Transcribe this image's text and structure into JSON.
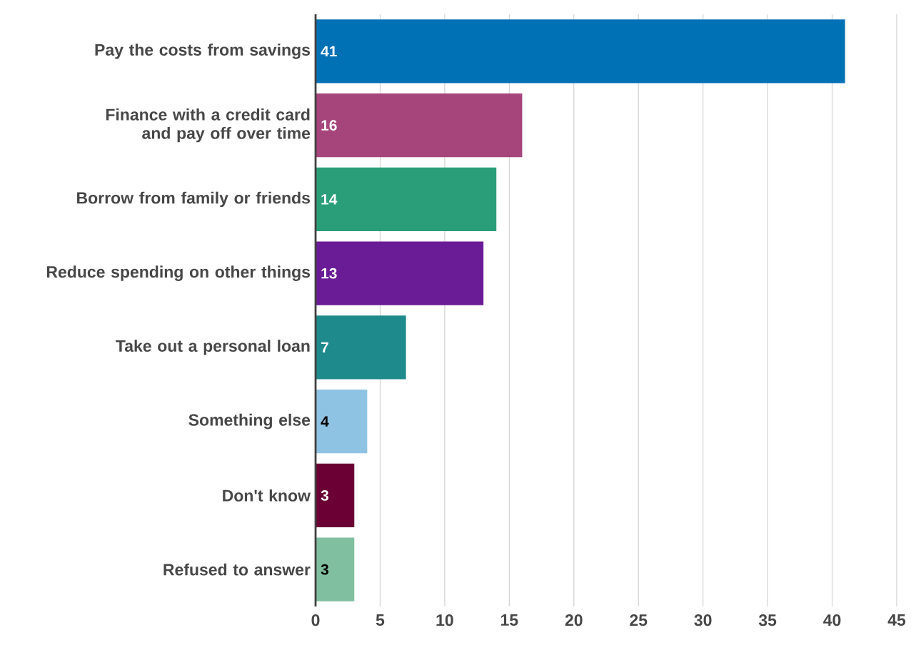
{
  "chart_data": {
    "type": "bar",
    "orientation": "horizontal",
    "categories": [
      "Pay the costs from savings",
      "Finance with a credit card and pay off over time",
      "Borrow from family or friends",
      "Reduce spending on other things",
      "Take out a personal loan",
      "Something else",
      "Don't know",
      "Refused to answer"
    ],
    "values": [
      41,
      16,
      14,
      13,
      7,
      4,
      3,
      3
    ],
    "colors": [
      "#0071b5",
      "#a6457b",
      "#2a9e78",
      "#6a1b96",
      "#1f8a8c",
      "#8fc3e3",
      "#6a0034",
      "#80bf9f"
    ],
    "xlim": [
      0,
      45
    ],
    "xticks": [
      0,
      5,
      10,
      15,
      20,
      25,
      30,
      35,
      40,
      45
    ],
    "grid": "x",
    "data_labels": true
  }
}
